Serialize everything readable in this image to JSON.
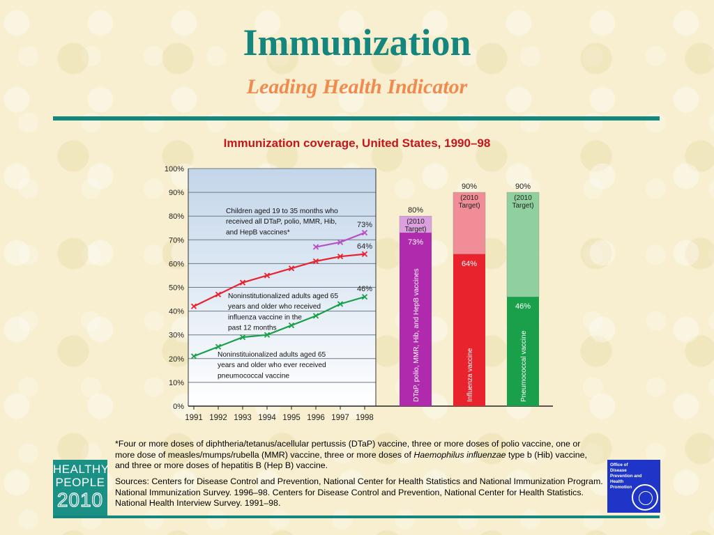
{
  "slide": {
    "title": "Immunization",
    "subtitle": "Leading Health Indicator",
    "footnote_line1": "*Four or more doses of diphtheria/tetanus/acellular pertussis (DTaP) vaccine, three or more doses of polio vaccine, one or more dose of measles/mumps/rubella (MMR) vaccine, three or more doses of ",
    "footnote_italic": "Haemophilus influenzae",
    "footnote_line2": " type b (Hib) vaccine, and three or more doses of hepatitis B (Hep B) vaccine.",
    "sources": "Sources: Centers for Disease Control and Prevention, National Center for Health Statistics and National Immunization Program. National Immunization Survey. 1996–98. Centers for Disease Control and Prevention, National Center for Health Statistics. National Health Interview Survey. 1991–98."
  },
  "logos": {
    "healthy_people": [
      "HEALTHY",
      "PEOPLE",
      "2010"
    ],
    "odphp": [
      "Office of",
      "Disease",
      "Prevention and",
      "Health",
      "Promotion"
    ]
  },
  "colors": {
    "teal": "#14867d",
    "red": "#e8232e",
    "green": "#1aa04a",
    "purple": "#b02aae",
    "title_red": "#c4161c"
  },
  "chart_data": [
    {
      "type": "line",
      "title": "Immunization coverage, United States, 1990–98",
      "x": [
        1991,
        1992,
        1993,
        1994,
        1995,
        1996,
        1997,
        1998
      ],
      "ylim": [
        0,
        100
      ],
      "yticks": [
        "0%",
        "10%",
        "20%",
        "30%",
        "40%",
        "50%",
        "60%",
        "70%",
        "80%",
        "90%",
        "100%"
      ],
      "grid": true,
      "series": [
        {
          "name": "Children aged 19 to 35 months who received all DTaP, polio, MMR, Hib, and HepB vaccines*",
          "color": "#b84fc4",
          "x": [
            1996,
            1997,
            1998
          ],
          "values": [
            67,
            69,
            73
          ],
          "end_label": "73%"
        },
        {
          "name": "Noninstitutionalized adults aged 65 years and older who received influenza vaccine in the past 12 months",
          "color": "#e8232e",
          "x": [
            1991,
            1992,
            1993,
            1994,
            1995,
            1996,
            1997,
            1998
          ],
          "values": [
            42,
            47,
            52,
            55,
            58,
            61,
            63,
            64
          ],
          "end_label": "64%"
        },
        {
          "name": "Noninstituionalized adults aged 65 years and older who ever received pneumococcal vaccine",
          "color": "#1aa04a",
          "x": [
            1991,
            1992,
            1993,
            1994,
            1995,
            1996,
            1997,
            1998
          ],
          "values": [
            21,
            25,
            29,
            30,
            34,
            38,
            43,
            46
          ],
          "end_label": "46%"
        }
      ]
    },
    {
      "type": "bar",
      "categories": [
        "DTaP, polio, MMR, Hib, and HepB vaccines",
        "Influenza vaccine",
        "Pneumococcal vaccine"
      ],
      "series": [
        {
          "name": "1998",
          "values": [
            73,
            64,
            46
          ],
          "labels": [
            "73%",
            "64%",
            "46%"
          ]
        },
        {
          "name": "2010 Target",
          "values": [
            80,
            90,
            90
          ],
          "labels": [
            "80%",
            "90%",
            "90%"
          ]
        }
      ],
      "target_label": "(2010 Target)",
      "colors": [
        "#b02aae",
        "#e8232e",
        "#1aa04a"
      ],
      "target_colors": [
        "#dca0de",
        "#f08d96",
        "#8fd09e"
      ],
      "ylim": [
        0,
        100
      ]
    }
  ]
}
